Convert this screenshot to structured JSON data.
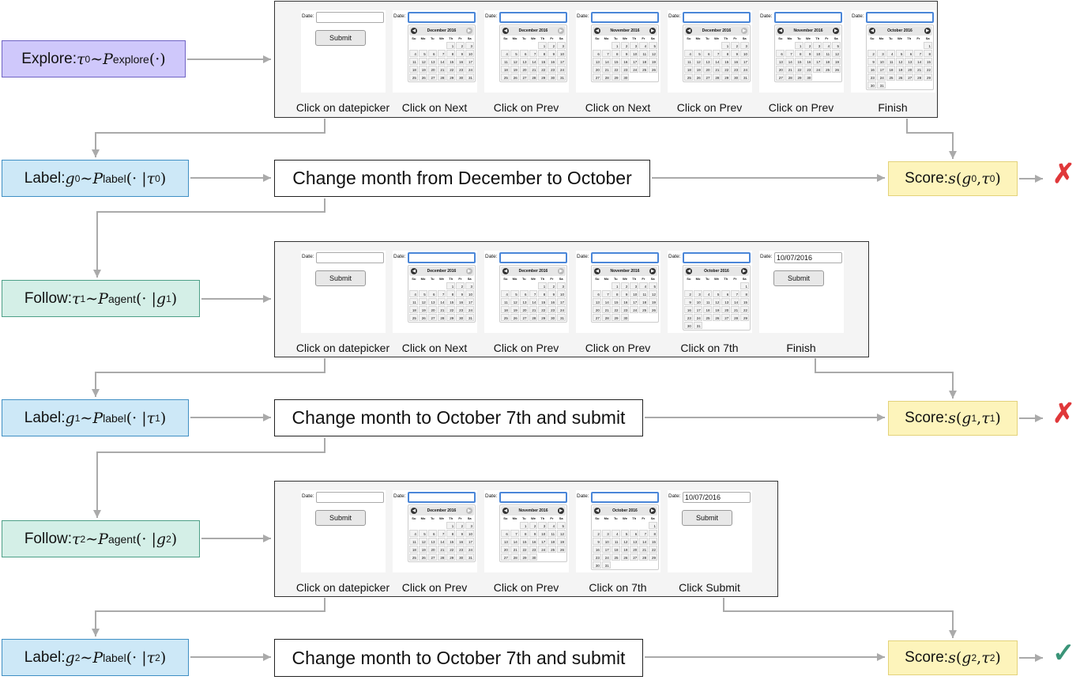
{
  "colors": {
    "explore": "#cfc8fb",
    "label": "#cde8f7",
    "follow": "#d4efe7",
    "score": "#fdf4bb",
    "arrow": "#aaaaaa",
    "cross": "#e0383a",
    "check": "#3a9478"
  },
  "common": {
    "date_label": "Date:",
    "submit": "Submit",
    "day_names": [
      "Su",
      "Mo",
      "Tu",
      "We",
      "Th",
      "Fr",
      "Sa"
    ],
    "prev_icon": "◀",
    "next_icon": "▶"
  },
  "months": {
    "dec": {
      "title": "December 2016",
      "offset": 4,
      "days": 31,
      "next_enabled": false
    },
    "nov": {
      "title": "November 2016",
      "offset": 2,
      "days": 30,
      "next_enabled": true
    },
    "oct": {
      "title": "October 2016",
      "offset": 6,
      "days": 31,
      "next_enabled": true
    }
  },
  "rows": [
    {
      "type": "explore",
      "parts": [
        [
          "Explore: ",
          ""
        ],
        [
          "τ",
          "m"
        ],
        [
          "0",
          "sup"
        ],
        [
          " ∼ ",
          "r"
        ],
        [
          "P",
          "m"
        ],
        [
          "explore",
          "sub"
        ],
        [
          "(·)",
          "r"
        ]
      ],
      "steps": [
        {
          "label": "Click on datepicker",
          "view": "empty"
        },
        {
          "label": "Click on Next",
          "view": "dec"
        },
        {
          "label": "Click on Prev",
          "view": "dec"
        },
        {
          "label": "Click on Next",
          "view": "nov"
        },
        {
          "label": "Click on Prev",
          "view": "dec"
        },
        {
          "label": "Click on Prev",
          "view": "nov"
        },
        {
          "label": "Finish",
          "view": "oct"
        }
      ]
    },
    {
      "type": "label",
      "parts": [
        [
          "Label: ",
          ""
        ],
        [
          "g",
          "m"
        ],
        [
          "0",
          "sup"
        ],
        [
          " ∼ ",
          "r"
        ],
        [
          "P",
          "m"
        ],
        [
          "label",
          "sub"
        ],
        [
          "(· | ",
          "r"
        ],
        [
          "τ",
          "m"
        ],
        [
          "0",
          "sup"
        ],
        [
          ")",
          "r"
        ]
      ],
      "instruction": "Change month from December to October",
      "score": [
        [
          "Score: ",
          ""
        ],
        [
          "s",
          "m"
        ],
        [
          "(",
          "r"
        ],
        [
          "g",
          "m"
        ],
        [
          "0",
          "sup"
        ],
        [
          ", ",
          "r"
        ],
        [
          "τ",
          "m"
        ],
        [
          "0",
          "sup"
        ],
        [
          ")",
          "r"
        ]
      ],
      "result": "✗",
      "result_type": "cross"
    },
    {
      "type": "follow",
      "parts": [
        [
          "Follow: ",
          ""
        ],
        [
          "τ",
          "m"
        ],
        [
          "1",
          "sup"
        ],
        [
          " ∼ ",
          "r"
        ],
        [
          "P",
          "m"
        ],
        [
          "agent",
          "sub"
        ],
        [
          "(· | ",
          "r"
        ],
        [
          "g",
          "m"
        ],
        [
          "1",
          "sup"
        ],
        [
          ")",
          "r"
        ]
      ],
      "steps": [
        {
          "label": "Click on datepicker",
          "view": "empty"
        },
        {
          "label": "Click on Next",
          "view": "dec"
        },
        {
          "label": "Click on Prev",
          "view": "dec"
        },
        {
          "label": "Click on Prev",
          "view": "nov"
        },
        {
          "label": "Click on 7th",
          "view": "oct"
        },
        {
          "label": "Finish",
          "view": "filled",
          "value": "10/07/2016"
        }
      ]
    },
    {
      "type": "label",
      "parts": [
        [
          "Label: ",
          ""
        ],
        [
          "g",
          "m"
        ],
        [
          "1",
          "sup"
        ],
        [
          " ∼ ",
          "r"
        ],
        [
          "P",
          "m"
        ],
        [
          "label",
          "sub"
        ],
        [
          "(· | ",
          "r"
        ],
        [
          "τ",
          "m"
        ],
        [
          "1",
          "sup"
        ],
        [
          ")",
          "r"
        ]
      ],
      "instruction": "Change month to October 7th and submit",
      "score": [
        [
          "Score: ",
          ""
        ],
        [
          "s",
          "m"
        ],
        [
          "(",
          "r"
        ],
        [
          "g",
          "m"
        ],
        [
          "1",
          "sup"
        ],
        [
          ", ",
          "r"
        ],
        [
          "τ",
          "m"
        ],
        [
          "1",
          "sup"
        ],
        [
          ")",
          "r"
        ]
      ],
      "result": "✗",
      "result_type": "cross"
    },
    {
      "type": "follow",
      "parts": [
        [
          "Follow: ",
          ""
        ],
        [
          "τ",
          "m"
        ],
        [
          "2",
          "sup"
        ],
        [
          " ∼ ",
          "r"
        ],
        [
          "P",
          "m"
        ],
        [
          "agent",
          "sub"
        ],
        [
          "(· | ",
          "r"
        ],
        [
          "g",
          "m"
        ],
        [
          "2",
          "sup"
        ],
        [
          ")",
          "r"
        ]
      ],
      "steps": [
        {
          "label": "Click on datepicker",
          "view": "empty"
        },
        {
          "label": "Click on Prev",
          "view": "dec"
        },
        {
          "label": "Click on Prev",
          "view": "nov"
        },
        {
          "label": "Click on 7th",
          "view": "oct"
        },
        {
          "label": "Click Submit",
          "view": "filled",
          "value": "10/07/2016"
        }
      ]
    },
    {
      "type": "label",
      "parts": [
        [
          "Label: ",
          ""
        ],
        [
          "g",
          "m"
        ],
        [
          "2",
          "sup"
        ],
        [
          " ∼ ",
          "r"
        ],
        [
          "P",
          "m"
        ],
        [
          "label",
          "sub"
        ],
        [
          "(· | ",
          "r"
        ],
        [
          "τ",
          "m"
        ],
        [
          "2",
          "sup"
        ],
        [
          ")",
          "r"
        ]
      ],
      "instruction": "Change month to October 7th and submit",
      "score": [
        [
          "Score: ",
          ""
        ],
        [
          "s",
          "m"
        ],
        [
          "(",
          "r"
        ],
        [
          "g",
          "m"
        ],
        [
          "2",
          "sup"
        ],
        [
          ", ",
          "r"
        ],
        [
          "τ",
          "m"
        ],
        [
          "2",
          "sup"
        ],
        [
          ")",
          "r"
        ]
      ],
      "result": "✓",
      "result_type": "check"
    }
  ]
}
